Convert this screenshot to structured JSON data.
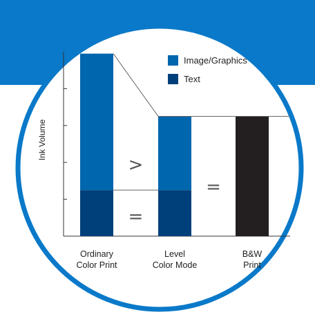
{
  "chart_data": {
    "type": "bar",
    "stacked": true,
    "ylabel": "Ink Volume",
    "xlabel": "",
    "ylim": [
      0,
      5
    ],
    "yticks": [
      1,
      2,
      3,
      4
    ],
    "grid": false,
    "legend_position": "top-right",
    "categories": [
      {
        "line1": "Ordinary",
        "line2": "Color Print"
      },
      {
        "line1": "Level",
        "line2": "Color Mode"
      },
      {
        "line1": "B&W",
        "line2": "Print"
      }
    ],
    "series": [
      {
        "name": "Text",
        "values": [
          1.25,
          1.25,
          0
        ],
        "color": "#00407a"
      },
      {
        "name": "Image/Graphics",
        "values": [
          3.7,
          2.0,
          0
        ],
        "color": "#0066ae"
      },
      {
        "name": "",
        "values": [
          0,
          0,
          3.25
        ],
        "color": "#231f20"
      }
    ],
    "legend": [
      {
        "label": "Image/Graphics",
        "color": "#0066ae"
      },
      {
        "label": "Text",
        "color": "#00407a"
      }
    ],
    "annotations": {
      "greater_than": ">",
      "equals_text": "=",
      "equals_total": "="
    }
  },
  "colors": {
    "accent": "#0a79c9",
    "circle_border": "#0a79c9",
    "background": "#ffffff"
  }
}
